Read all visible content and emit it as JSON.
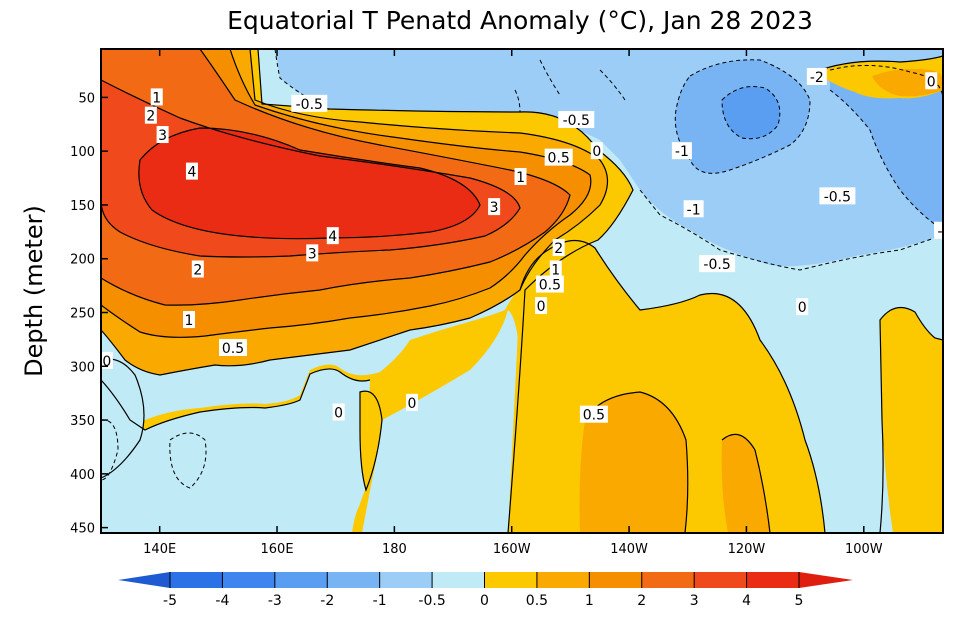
{
  "title": "Equatorial T Penatd Anomaly (°C), Jan 28 2023",
  "chart_data": {
    "type": "heatmap",
    "title": "Equatorial T Penatd Anomaly (°C), Jan 28 2023",
    "ylabel": "Depth (meter)",
    "xlabel": "",
    "x_range_deg_east": [
      130,
      273.5
    ],
    "y_range_m": [
      5,
      455
    ],
    "y_reversed": true,
    "x_ticks": [
      {
        "label": "140E",
        "lon": 140
      },
      {
        "label": "160E",
        "lon": 160
      },
      {
        "label": "180",
        "lon": 180
      },
      {
        "label": "160W",
        "lon": 200
      },
      {
        "label": "140W",
        "lon": 220
      },
      {
        "label": "120W",
        "lon": 240
      },
      {
        "label": "100W",
        "lon": 260
      }
    ],
    "y_ticks": [
      {
        "label": "50",
        "depth": 50
      },
      {
        "label": "100",
        "depth": 100
      },
      {
        "label": "150",
        "depth": 150
      },
      {
        "label": "200",
        "depth": 200
      },
      {
        "label": "250",
        "depth": 250
      },
      {
        "label": "300",
        "depth": 300
      },
      {
        "label": "350",
        "depth": 350
      },
      {
        "label": "400",
        "depth": 400
      },
      {
        "label": "450",
        "depth": 450
      }
    ],
    "colorbar": {
      "levels": [
        "-5",
        "-4",
        "-3",
        "-2",
        "-1",
        "-0.5",
        "0",
        "0.5",
        "1",
        "2",
        "3",
        "4",
        "5"
      ],
      "colors": [
        "#2a72e6",
        "#3e86ee",
        "#5a9ef2",
        "#78b4f4",
        "#9ccdf7",
        "#c0ebf6",
        "#fcc800",
        "#f9a900",
        "#f68f00",
        "#f26b14",
        "#f04a1c",
        "#ea2c14"
      ],
      "arrow_colors": {
        "low": "#1e5ad2",
        "high": "#e01e10"
      }
    },
    "contour_labels": [
      {
        "text": "1",
        "lon": 139.5,
        "depth": 50
      },
      {
        "text": "2",
        "lon": 138.5,
        "depth": 67
      },
      {
        "text": "3",
        "lon": 140.5,
        "depth": 85
      },
      {
        "text": "4",
        "lon": 145.5,
        "depth": 119
      },
      {
        "text": "4",
        "lon": 169.5,
        "depth": 179
      },
      {
        "text": "3",
        "lon": 166,
        "depth": 195
      },
      {
        "text": "2",
        "lon": 146.5,
        "depth": 210
      },
      {
        "text": "1",
        "lon": 145,
        "depth": 257
      },
      {
        "text": "0.5",
        "lon": 152.5,
        "depth": 283
      },
      {
        "text": "0",
        "lon": 131,
        "depth": 295
      },
      {
        "text": "0",
        "lon": 170.5,
        "depth": 343
      },
      {
        "text": "0",
        "lon": 183,
        "depth": 334
      },
      {
        "text": "-0.5",
        "lon": 165.5,
        "depth": 56
      },
      {
        "text": "-0.5",
        "lon": 211,
        "depth": 71
      },
      {
        "text": "0.5",
        "lon": 208,
        "depth": 106
      },
      {
        "text": "0",
        "lon": 214.5,
        "depth": 100
      },
      {
        "text": "1",
        "lon": 201.5,
        "depth": 124
      },
      {
        "text": "3",
        "lon": 197,
        "depth": 152
      },
      {
        "text": "2",
        "lon": 208,
        "depth": 190
      },
      {
        "text": "1",
        "lon": 207.5,
        "depth": 210
      },
      {
        "text": "0.5",
        "lon": 206.5,
        "depth": 224
      },
      {
        "text": "0",
        "lon": 205,
        "depth": 244
      },
      {
        "text": "0",
        "lon": 249.5,
        "depth": 245
      },
      {
        "text": "0.5",
        "lon": 214,
        "depth": 345
      },
      {
        "text": "-1",
        "lon": 229,
        "depth": 100
      },
      {
        "text": "-1",
        "lon": 231,
        "depth": 154
      },
      {
        "text": "-0.5",
        "lon": 235,
        "depth": 205
      },
      {
        "text": "-0.5",
        "lon": 255.5,
        "depth": 142
      },
      {
        "text": "-2",
        "lon": 252,
        "depth": 31
      },
      {
        "text": "0",
        "lon": 271.5,
        "depth": 35
      },
      {
        "text": "-",
        "lon": 273,
        "depth": 174
      }
    ]
  }
}
